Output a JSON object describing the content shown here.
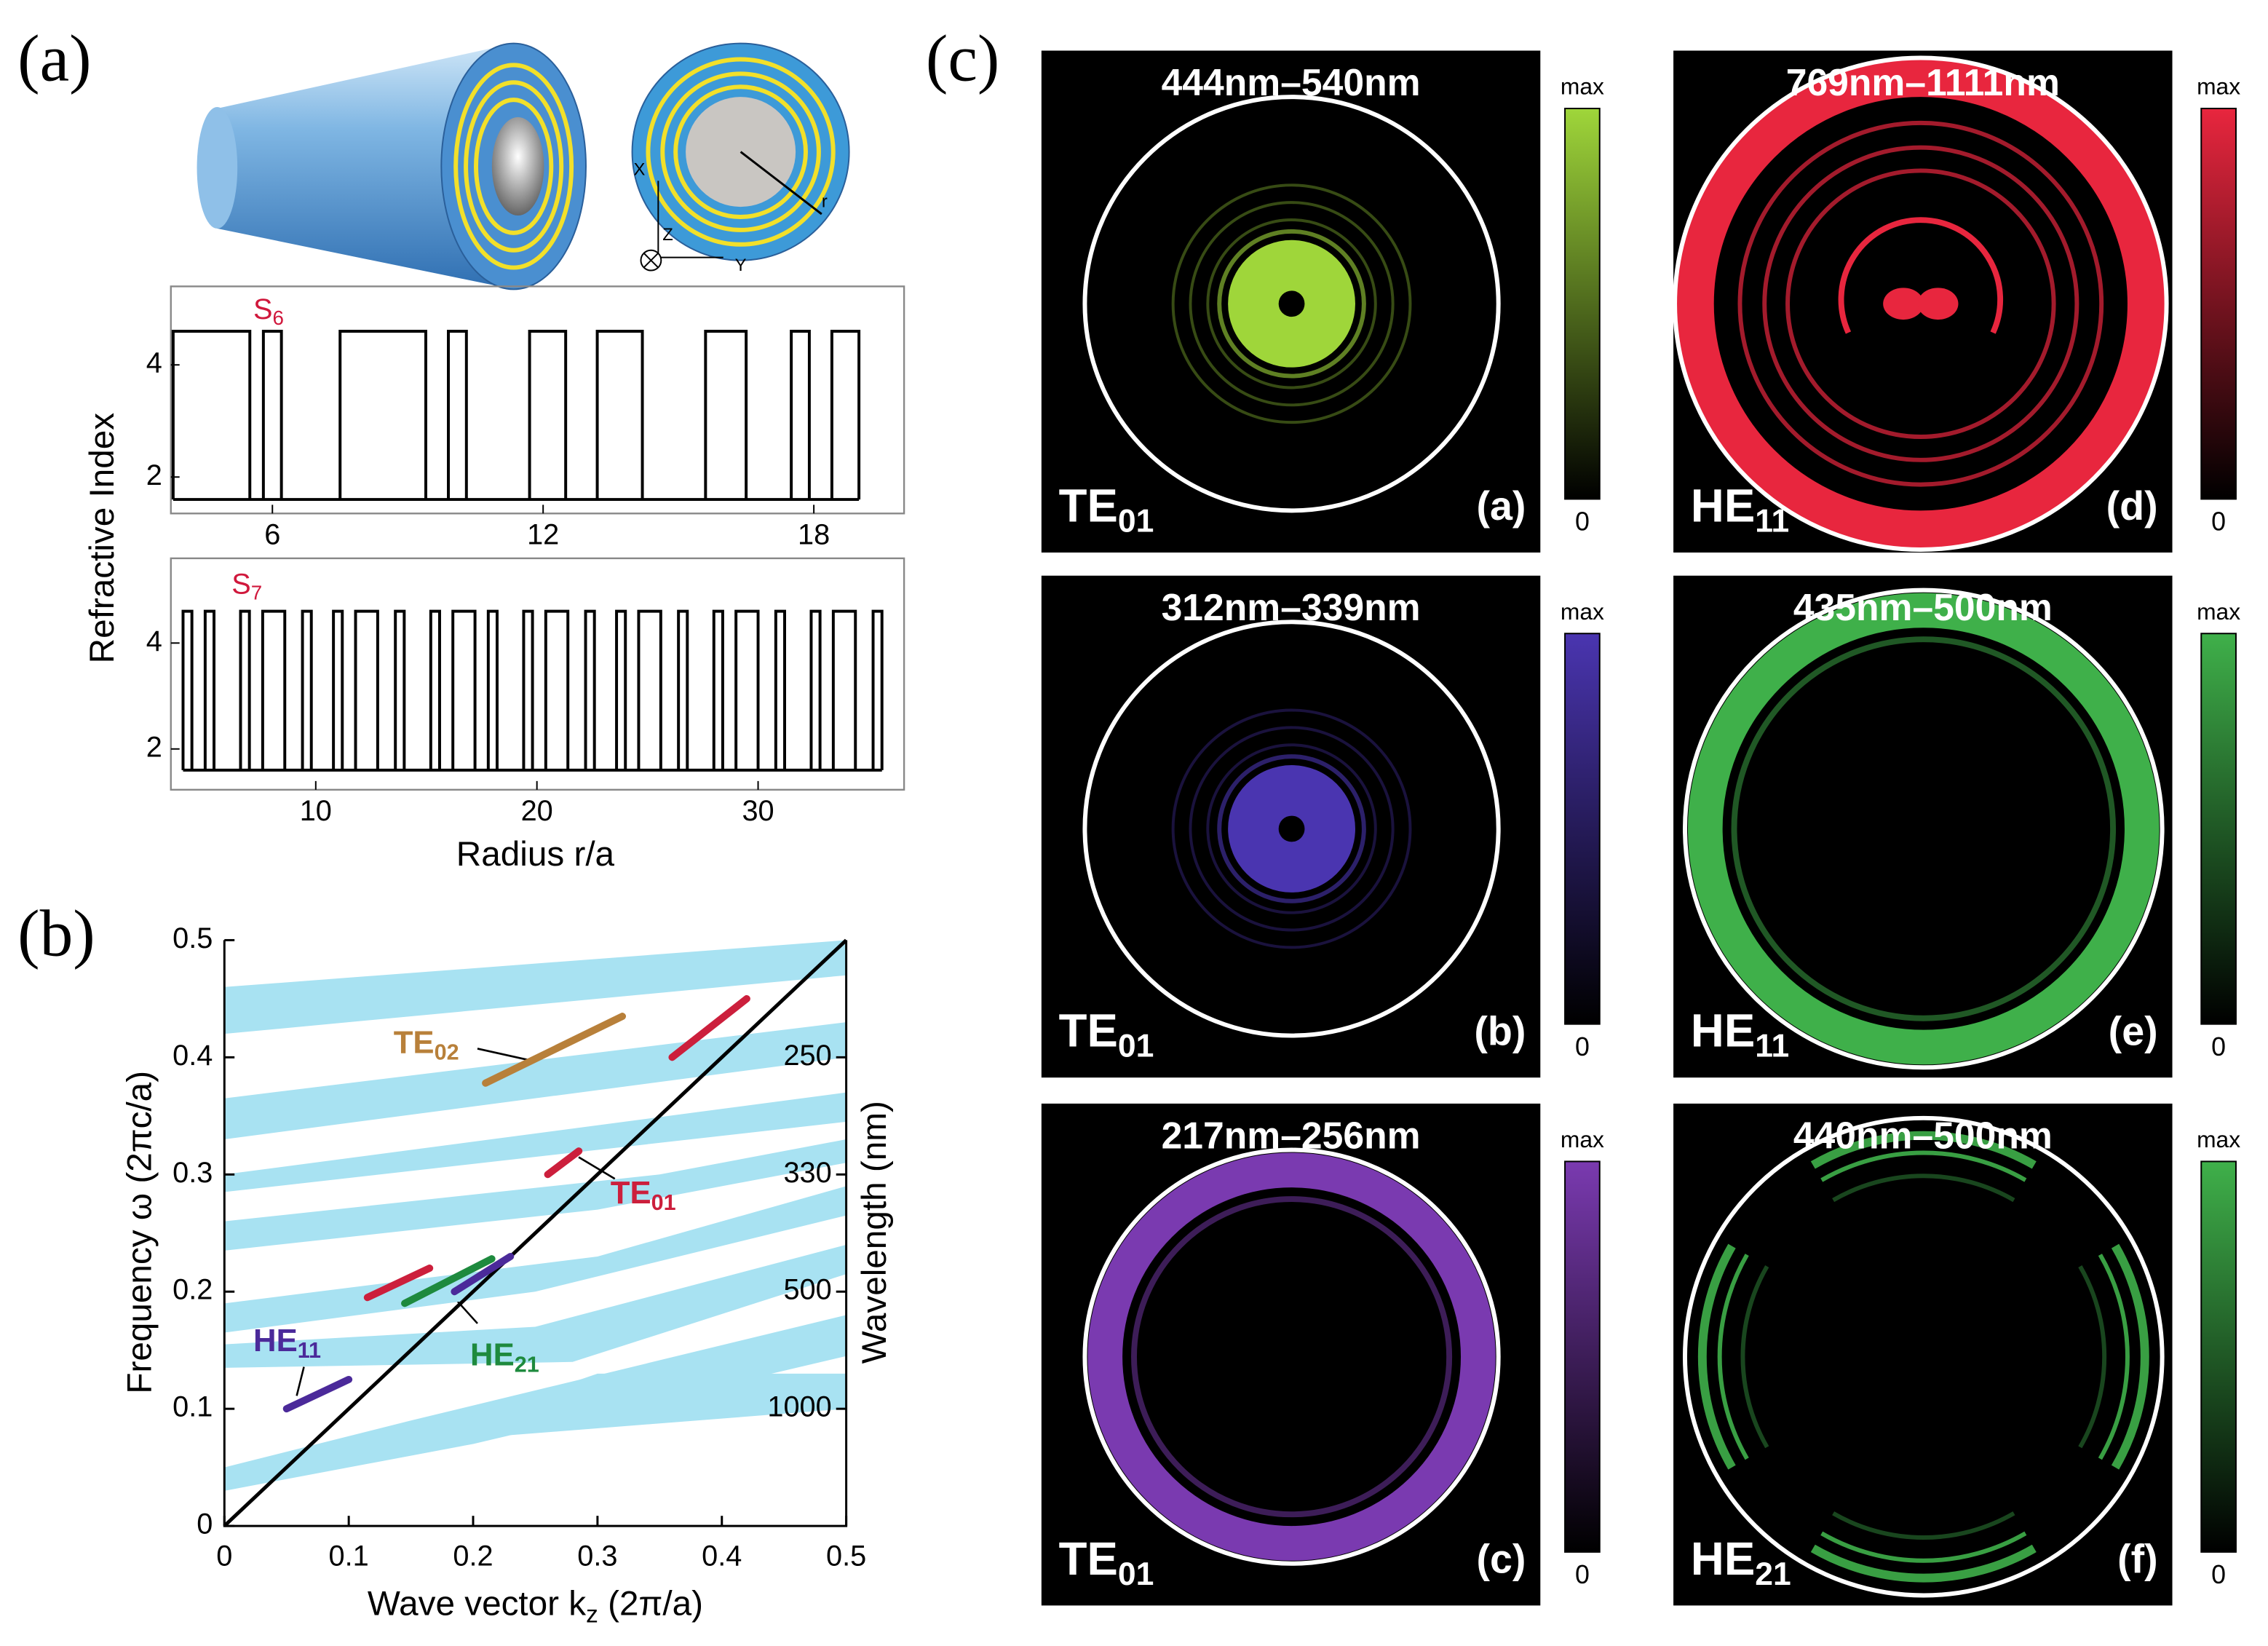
{
  "panel_a": {
    "label": "(a)",
    "axis_names": [
      "X",
      "Y",
      "Z",
      "r"
    ],
    "y_label": "Refractive Index",
    "x_label": "Radius  r/a",
    "high": 4.6,
    "low": 1.6,
    "plots": [
      {
        "name": {
          "base": "S",
          "sub": "6"
        },
        "xlim": [
          3.75,
          20
        ],
        "ylim": [
          1.35,
          5.4
        ],
        "xticks": [
          6,
          12,
          18
        ],
        "yticks": [
          2,
          4
        ],
        "layers": [
          [
            3.8,
            5.5
          ],
          [
            5.8,
            6.2
          ],
          [
            7.5,
            9.4
          ],
          [
            9.9,
            10.3
          ],
          [
            11.7,
            12.5
          ],
          [
            13.2,
            14.2
          ],
          [
            15.6,
            16.5
          ],
          [
            17.5,
            17.9
          ],
          [
            18.4,
            19.0
          ]
        ]
      },
      {
        "name": {
          "base": "S",
          "sub": "7"
        },
        "xlim": [
          3.45,
          36.6
        ],
        "ylim": [
          1.23,
          5.6
        ],
        "xticks": [
          10,
          20,
          30
        ],
        "yticks": [
          2,
          4
        ],
        "layers": [
          [
            4.0,
            4.4
          ],
          [
            5.0,
            5.4
          ],
          [
            6.6,
            7.0
          ],
          [
            7.6,
            8.6
          ],
          [
            9.4,
            9.8
          ],
          [
            10.8,
            11.2
          ],
          [
            11.8,
            12.8
          ],
          [
            13.6,
            14.0
          ],
          [
            15.2,
            15.6
          ],
          [
            16.2,
            17.2
          ],
          [
            17.8,
            18.2
          ],
          [
            19.4,
            19.8
          ],
          [
            20.4,
            21.4
          ],
          [
            22.2,
            22.6
          ],
          [
            23.6,
            24.0
          ],
          [
            24.6,
            25.6
          ],
          [
            26.4,
            26.8
          ],
          [
            28.0,
            28.4
          ],
          [
            29.0,
            30.0
          ],
          [
            30.8,
            31.2
          ],
          [
            32.4,
            32.8
          ],
          [
            33.4,
            34.4
          ],
          [
            35.2,
            35.6
          ]
        ]
      }
    ]
  },
  "panel_b": {
    "label": "(b)",
    "y_label": "Frequency ω (2πc/a)",
    "x_label": {
      "base": "Wave vector k",
      "sub": "z",
      "tail": " (2π/a)"
    },
    "y2_label": "Wavelength (nm)",
    "xlim": [
      0,
      0.5
    ],
    "ylim": [
      0,
      0.5
    ],
    "xticks": [
      0,
      0.1,
      0.2,
      0.3,
      0.4,
      0.5
    ],
    "yticks": [
      0,
      0.1,
      0.2,
      0.3,
      0.4,
      0.5
    ],
    "wavelength_ticks": [
      {
        "value": 0.4,
        "label": "250"
      },
      {
        "value": 0.3,
        "label": "330"
      },
      {
        "value": 0.2,
        "label": "500"
      },
      {
        "value": 0.1,
        "label": "1000"
      }
    ],
    "band_color": "#a8e2f2",
    "bands": [
      {
        "x": [
          0,
          0.5,
          0.5,
          0
        ],
        "y": [
          0.46,
          0.5,
          0.47,
          0.42
        ]
      },
      {
        "x": [
          0,
          0.5,
          0.5,
          0
        ],
        "y": [
          0.365,
          0.43,
          0.4,
          0.33
        ]
      },
      {
        "x": [
          0,
          0.5,
          0.5,
          0
        ],
        "y": [
          0.3,
          0.37,
          0.345,
          0.285
        ]
      },
      {
        "x": [
          0,
          0.35,
          0.5,
          0.5,
          0.3,
          0
        ],
        "y": [
          0.26,
          0.3,
          0.33,
          0.31,
          0.27,
          0.235
        ]
      },
      {
        "x": [
          0,
          0.3,
          0.5,
          0.5,
          0.25,
          0
        ],
        "y": [
          0.19,
          0.23,
          0.29,
          0.265,
          0.2,
          0.165
        ]
      },
      {
        "x": [
          0,
          0.25,
          0.5,
          0.5,
          0.28,
          0
        ],
        "y": [
          0.155,
          0.17,
          0.24,
          0.215,
          0.14,
          0.135
        ]
      },
      {
        "x": [
          0,
          0.15,
          0.5,
          0.5,
          0.2,
          0
        ],
        "y": [
          0.05,
          0.09,
          0.18,
          0.145,
          0.07,
          0.03
        ]
      },
      {
        "x": [
          0.08,
          0.3,
          0.5,
          0.5,
          0.2
        ],
        "y": [
          0.05,
          0.13,
          0.13,
          0.1,
          0.075
        ]
      }
    ],
    "light_line": {
      "x": [
        0,
        0.5
      ],
      "y": [
        0,
        0.5
      ]
    },
    "modes": [
      {
        "color": "#b8803a",
        "x": [
          0.21,
          0.32
        ],
        "y": [
          0.378,
          0.435
        ]
      },
      {
        "color": "#cc1f3c",
        "x": [
          0.36,
          0.42
        ],
        "y": [
          0.4,
          0.45
        ]
      },
      {
        "color": "#cc1f3c",
        "x": [
          0.26,
          0.285
        ],
        "y": [
          0.3,
          0.32
        ]
      },
      {
        "color": "#cc1f3c",
        "x": [
          0.115,
          0.165
        ],
        "y": [
          0.195,
          0.22
        ]
      },
      {
        "color": "#1e8a3e",
        "x": [
          0.145,
          0.215
        ],
        "y": [
          0.19,
          0.228
        ]
      },
      {
        "color": "#4b2a9a",
        "x": [
          0.185,
          0.23
        ],
        "y": [
          0.2,
          0.23
        ]
      },
      {
        "color": "#4b2a9a",
        "x": [
          0.05,
          0.1
        ],
        "y": [
          0.1,
          0.125
        ]
      }
    ],
    "mode_labels": [
      {
        "base": "TE",
        "sub": "02",
        "color": "#b8803a"
      },
      {
        "base": "TE",
        "sub": "01",
        "color": "#cc1f3c"
      },
      {
        "base": "HE",
        "sub": "21",
        "color": "#1e8a3e"
      },
      {
        "base": "HE",
        "sub": "11",
        "color": "#4b2a9a"
      }
    ]
  },
  "panel_c": {
    "label": "(c)",
    "images": [
      {
        "title": "444nm–540nm",
        "mode": {
          "base": "TE",
          "sub": "01"
        },
        "tag": "(a)",
        "color": "#9fd63a",
        "cbar_max": "max",
        "cbar_min": 0
      },
      {
        "title": "769nm–1111nm",
        "mode": {
          "base": "HE",
          "sub": "11"
        },
        "tag": "(d)",
        "color": "#e8263e",
        "cbar_max": "max",
        "cbar_min": 0
      },
      {
        "title": "312nm–339nm",
        "mode": {
          "base": "TE",
          "sub": "01"
        },
        "tag": "(b)",
        "color": "#4a35b0",
        "cbar_max": "max",
        "cbar_min": 0
      },
      {
        "title": "435nm–500nm",
        "mode": {
          "base": "HE",
          "sub": "11"
        },
        "tag": "(e)",
        "color": "#3fb04a",
        "cbar_max": "max",
        "cbar_min": 0
      },
      {
        "title": "217nm–256nm",
        "mode": {
          "base": "TE",
          "sub": "01"
        },
        "tag": "(c)",
        "color": "#7a3ab0",
        "cbar_max": "max",
        "cbar_min": 0
      },
      {
        "title": "440nm–500nm",
        "mode": {
          "base": "HE",
          "sub": "21"
        },
        "tag": "(f)",
        "color": "#3fb04a",
        "cbar_max": "max",
        "cbar_min": 0
      }
    ]
  }
}
